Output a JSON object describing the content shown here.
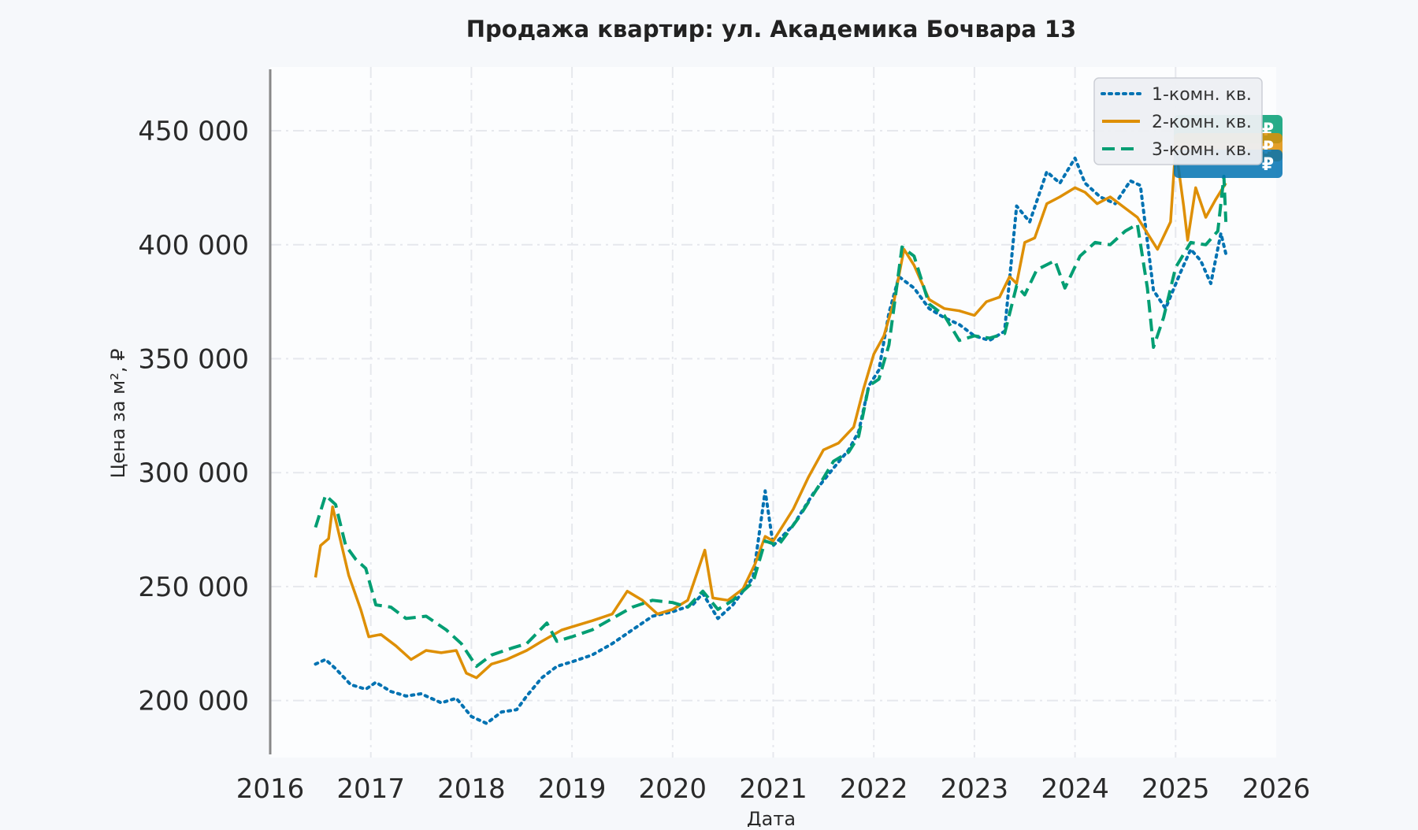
{
  "chart_data": {
    "type": "line",
    "title": "Продажа квартир: ул. Академика Бочвара 13",
    "xlabel": "Дата",
    "ylabel": "Цена за м², ₽",
    "xlim": [
      2016,
      2026
    ],
    "ylim": [
      175000,
      478000
    ],
    "x_ticks": [
      2016,
      2017,
      2018,
      2019,
      2020,
      2021,
      2022,
      2023,
      2024,
      2025,
      2026
    ],
    "x_tick_labels": [
      "2016",
      "2017",
      "2018",
      "2019",
      "2020",
      "2021",
      "2022",
      "2023",
      "2024",
      "2025",
      "2026"
    ],
    "y_ticks": [
      200000,
      250000,
      300000,
      350000,
      400000,
      450000
    ],
    "y_tick_labels": [
      "200 000",
      "250 000",
      "300 000",
      "350 000",
      "400 000",
      "450 000"
    ],
    "grid": true,
    "legend_position": "top-right",
    "end_labels": [
      "₽",
      "₽",
      "₽"
    ],
    "series": [
      {
        "name": "1-комн. кв.",
        "color": "#0072b2",
        "style": "dotted",
        "points": [
          [
            2016.45,
            216000
          ],
          [
            2016.55,
            218000
          ],
          [
            2016.65,
            214000
          ],
          [
            2016.8,
            207000
          ],
          [
            2016.95,
            205000
          ],
          [
            2017.05,
            208000
          ],
          [
            2017.2,
            204000
          ],
          [
            2017.35,
            202000
          ],
          [
            2017.5,
            203000
          ],
          [
            2017.7,
            199000
          ],
          [
            2017.85,
            201000
          ],
          [
            2018.0,
            193000
          ],
          [
            2018.15,
            190000
          ],
          [
            2018.3,
            195000
          ],
          [
            2018.45,
            196000
          ],
          [
            2018.55,
            202000
          ],
          [
            2018.7,
            210000
          ],
          [
            2018.85,
            215000
          ],
          [
            2019.0,
            217000
          ],
          [
            2019.2,
            220000
          ],
          [
            2019.4,
            225000
          ],
          [
            2019.6,
            231000
          ],
          [
            2019.8,
            237000
          ],
          [
            2020.0,
            239000
          ],
          [
            2020.2,
            242000
          ],
          [
            2020.3,
            247000
          ],
          [
            2020.45,
            236000
          ],
          [
            2020.6,
            242000
          ],
          [
            2020.8,
            254000
          ],
          [
            2020.92,
            292000
          ],
          [
            2021.0,
            268000
          ],
          [
            2021.2,
            277000
          ],
          [
            2021.4,
            291000
          ],
          [
            2021.6,
            302000
          ],
          [
            2021.75,
            310000
          ],
          [
            2021.85,
            318000
          ],
          [
            2021.95,
            338000
          ],
          [
            2022.05,
            345000
          ],
          [
            2022.15,
            370000
          ],
          [
            2022.25,
            386000
          ],
          [
            2022.4,
            381000
          ],
          [
            2022.55,
            372000
          ],
          [
            2022.7,
            368000
          ],
          [
            2022.85,
            365000
          ],
          [
            2023.0,
            360000
          ],
          [
            2023.15,
            358000
          ],
          [
            2023.3,
            362000
          ],
          [
            2023.42,
            417000
          ],
          [
            2023.55,
            410000
          ],
          [
            2023.72,
            432000
          ],
          [
            2023.85,
            427000
          ],
          [
            2024.0,
            438000
          ],
          [
            2024.1,
            427000
          ],
          [
            2024.25,
            421000
          ],
          [
            2024.4,
            418000
          ],
          [
            2024.55,
            428000
          ],
          [
            2024.65,
            426000
          ],
          [
            2024.78,
            380000
          ],
          [
            2024.9,
            372000
          ],
          [
            2025.05,
            388000
          ],
          [
            2025.15,
            398000
          ],
          [
            2025.25,
            393000
          ],
          [
            2025.35,
            383000
          ],
          [
            2025.45,
            405000
          ],
          [
            2025.5,
            396000
          ]
        ]
      },
      {
        "name": "2-комн. кв.",
        "color": "#de8f05",
        "style": "solid",
        "points": [
          [
            2016.45,
            254000
          ],
          [
            2016.5,
            268000
          ],
          [
            2016.58,
            271000
          ],
          [
            2016.62,
            285000
          ],
          [
            2016.7,
            270000
          ],
          [
            2016.78,
            255000
          ],
          [
            2016.9,
            240000
          ],
          [
            2016.98,
            228000
          ],
          [
            2017.1,
            229000
          ],
          [
            2017.25,
            224000
          ],
          [
            2017.4,
            218000
          ],
          [
            2017.55,
            222000
          ],
          [
            2017.7,
            221000
          ],
          [
            2017.85,
            222000
          ],
          [
            2017.95,
            212000
          ],
          [
            2018.05,
            210000
          ],
          [
            2018.2,
            216000
          ],
          [
            2018.35,
            218000
          ],
          [
            2018.55,
            222000
          ],
          [
            2018.7,
            226000
          ],
          [
            2018.9,
            231000
          ],
          [
            2019.05,
            233000
          ],
          [
            2019.2,
            235000
          ],
          [
            2019.4,
            238000
          ],
          [
            2019.55,
            248000
          ],
          [
            2019.7,
            244000
          ],
          [
            2019.85,
            238000
          ],
          [
            2020.0,
            240000
          ],
          [
            2020.15,
            244000
          ],
          [
            2020.32,
            266000
          ],
          [
            2020.4,
            245000
          ],
          [
            2020.55,
            244000
          ],
          [
            2020.7,
            249000
          ],
          [
            2020.82,
            260000
          ],
          [
            2020.92,
            272000
          ],
          [
            2021.0,
            270000
          ],
          [
            2021.2,
            284000
          ],
          [
            2021.35,
            298000
          ],
          [
            2021.5,
            310000
          ],
          [
            2021.65,
            313000
          ],
          [
            2021.8,
            320000
          ],
          [
            2021.9,
            337000
          ],
          [
            2022.0,
            352000
          ],
          [
            2022.1,
            360000
          ],
          [
            2022.2,
            375000
          ],
          [
            2022.3,
            398000
          ],
          [
            2022.4,
            391000
          ],
          [
            2022.55,
            376000
          ],
          [
            2022.7,
            372000
          ],
          [
            2022.85,
            371000
          ],
          [
            2023.0,
            369000
          ],
          [
            2023.12,
            375000
          ],
          [
            2023.25,
            377000
          ],
          [
            2023.35,
            386000
          ],
          [
            2023.42,
            383000
          ],
          [
            2023.5,
            401000
          ],
          [
            2023.6,
            403000
          ],
          [
            2023.72,
            418000
          ],
          [
            2023.85,
            421000
          ],
          [
            2024.0,
            425000
          ],
          [
            2024.1,
            423000
          ],
          [
            2024.22,
            418000
          ],
          [
            2024.35,
            421000
          ],
          [
            2024.5,
            416000
          ],
          [
            2024.62,
            412000
          ],
          [
            2024.72,
            405000
          ],
          [
            2024.82,
            398000
          ],
          [
            2024.95,
            410000
          ],
          [
            2025.0,
            443000
          ],
          [
            2025.08,
            417000
          ],
          [
            2025.12,
            402000
          ],
          [
            2025.2,
            425000
          ],
          [
            2025.3,
            412000
          ],
          [
            2025.4,
            420000
          ],
          [
            2025.5,
            427000
          ]
        ]
      },
      {
        "name": "3-комн. кв.",
        "color": "#029e73",
        "style": "dashed",
        "points": [
          [
            2016.45,
            276000
          ],
          [
            2016.55,
            290000
          ],
          [
            2016.65,
            286000
          ],
          [
            2016.75,
            268000
          ],
          [
            2016.85,
            262000
          ],
          [
            2016.95,
            258000
          ],
          [
            2017.05,
            242000
          ],
          [
            2017.2,
            241000
          ],
          [
            2017.35,
            236000
          ],
          [
            2017.55,
            237000
          ],
          [
            2017.75,
            231000
          ],
          [
            2017.9,
            225000
          ],
          [
            2018.05,
            215000
          ],
          [
            2018.2,
            220000
          ],
          [
            2018.4,
            223000
          ],
          [
            2018.55,
            225000
          ],
          [
            2018.75,
            234000
          ],
          [
            2018.85,
            226000
          ],
          [
            2019.0,
            228000
          ],
          [
            2019.2,
            231000
          ],
          [
            2019.4,
            236000
          ],
          [
            2019.6,
            241000
          ],
          [
            2019.8,
            244000
          ],
          [
            2020.0,
            243000
          ],
          [
            2020.15,
            241000
          ],
          [
            2020.3,
            248000
          ],
          [
            2020.45,
            240000
          ],
          [
            2020.6,
            244000
          ],
          [
            2020.8,
            252000
          ],
          [
            2020.92,
            270000
          ],
          [
            2021.05,
            268000
          ],
          [
            2021.25,
            280000
          ],
          [
            2021.45,
            294000
          ],
          [
            2021.6,
            305000
          ],
          [
            2021.75,
            309000
          ],
          [
            2021.85,
            316000
          ],
          [
            2021.95,
            338000
          ],
          [
            2022.05,
            341000
          ],
          [
            2022.15,
            356000
          ],
          [
            2022.28,
            399000
          ],
          [
            2022.4,
            395000
          ],
          [
            2022.55,
            374000
          ],
          [
            2022.7,
            369000
          ],
          [
            2022.85,
            358000
          ],
          [
            2023.0,
            360000
          ],
          [
            2023.15,
            359000
          ],
          [
            2023.3,
            361000
          ],
          [
            2023.42,
            382000
          ],
          [
            2023.5,
            378000
          ],
          [
            2023.62,
            389000
          ],
          [
            2023.8,
            393000
          ],
          [
            2023.9,
            381000
          ],
          [
            2024.05,
            395000
          ],
          [
            2024.2,
            401000
          ],
          [
            2024.35,
            400000
          ],
          [
            2024.5,
            406000
          ],
          [
            2024.62,
            409000
          ],
          [
            2024.72,
            381000
          ],
          [
            2024.78,
            355000
          ],
          [
            2024.88,
            368000
          ],
          [
            2025.0,
            390000
          ],
          [
            2025.15,
            401000
          ],
          [
            2025.3,
            400000
          ],
          [
            2025.42,
            406000
          ],
          [
            2025.48,
            430000
          ],
          [
            2025.5,
            410000
          ]
        ]
      }
    ]
  }
}
